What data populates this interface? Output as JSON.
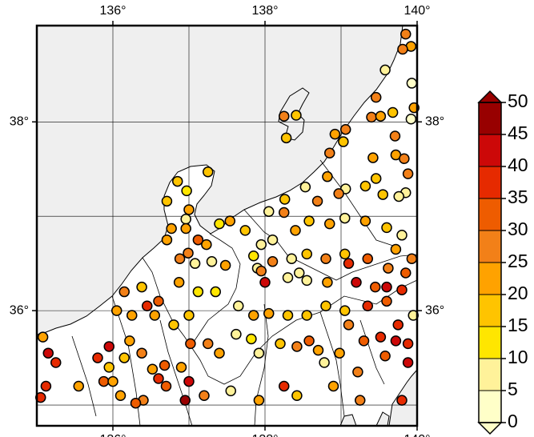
{
  "chart_data": {
    "type": "scatter",
    "xlim": [
      135,
      140
    ],
    "ylim": [
      34.78,
      39.02
    ],
    "xticks": [
      {
        "value": 136,
        "label": "136°"
      },
      {
        "value": 138,
        "label": "138°"
      },
      {
        "value": 140,
        "label": "140°"
      }
    ],
    "yticks": [
      {
        "value": 36,
        "label": "36°"
      },
      {
        "value": 38,
        "label": "38°"
      }
    ],
    "xgrid": [
      136,
      137,
      138,
      139
    ],
    "ygrid": [
      35,
      36,
      37,
      38
    ],
    "colorbar": {
      "ticks": [
        0,
        5,
        10,
        15,
        20,
        25,
        30,
        35,
        40,
        45,
        50
      ],
      "colors": [
        "#ffffc8",
        "#fff29a",
        "#ffe600",
        "#ffc400",
        "#ffa200",
        "#f28018",
        "#ee5c00",
        "#e62a00",
        "#cc0808",
        "#980000"
      ]
    },
    "x": [
      139.85,
      139.92,
      139.81,
      139.58,
      139.93,
      139.46,
      139.96,
      139.68,
      139.4,
      139.52,
      139.92,
      138.25,
      138.41,
      138.28,
      139.06,
      138.92,
      139.03,
      138.85,
      139.71,
      139.72,
      139.42,
      139.83,
      139.46,
      139.88,
      139.85,
      138.82,
      139.06,
      138.53,
      139.32,
      138.26,
      138.25,
      138.05,
      138.69,
      138.97,
      139.55,
      139.76,
      137.25,
      136.85,
      136.71,
      136.97,
      137.0,
      136.96,
      136.77,
      136.96,
      137.12,
      136.71,
      136.88,
      136.99,
      137.23,
      137.4,
      137.54,
      137.74,
      137.95,
      138.1,
      138.4,
      138.58,
      138.85,
      139.05,
      139.32,
      139.6,
      139.8,
      139.72,
      139.93,
      137.9,
      137.85,
      138.1,
      138.35,
      138.55,
      138.8,
      139.05,
      139.35,
      139.62,
      139.85,
      138.0,
      137.95,
      138.3,
      138.45,
      138.55,
      138.82,
      139.1,
      139.2,
      139.45,
      139.6,
      139.8,
      137.08,
      137.3,
      137.48,
      136.87,
      137.12,
      137.35,
      137.65,
      137.85,
      138.05,
      138.3,
      138.55,
      138.8,
      139.05,
      139.1,
      139.35,
      139.6,
      139.75,
      139.95,
      136.15,
      136.38,
      136.45,
      136.6,
      136.25,
      136.05,
      136.55,
      136.8,
      137.0,
      136.22,
      136.15,
      136.38,
      136.52,
      136.68,
      136.9,
      137.02,
      137.25,
      137.4,
      137.62,
      137.82,
      137.92,
      138.2,
      138.42,
      138.58,
      138.7,
      138.78,
      138.98,
      139.3,
      139.52,
      139.72,
      139.88,
      139.58,
      139.88,
      139.22,
      138.9,
      138.42,
      138.25,
      137.92,
      137.55,
      137.2,
      136.95,
      136.7,
      136.6,
      136.4,
      136.1,
      135.88,
      135.55,
      135.25,
      135.15,
      135.08,
      135.12,
      135.05,
      135.8,
      135.95,
      135.95,
      136.0,
      136.3,
      137.0,
      139.25,
      139.8
    ],
    "y": [
      38.93,
      38.8,
      38.77,
      38.55,
      38.41,
      38.26,
      38.15,
      38.1,
      38.05,
      38.06,
      38.03,
      38.06,
      38.07,
      37.83,
      37.92,
      37.87,
      37.79,
      37.67,
      37.85,
      37.65,
      37.62,
      37.61,
      37.4,
      37.45,
      37.25,
      37.42,
      37.29,
      37.31,
      37.32,
      37.18,
      37.04,
      37.05,
      37.16,
      37.24,
      37.23,
      37.21,
      37.47,
      37.37,
      37.16,
      37.27,
      37.07,
      36.97,
      36.87,
      36.87,
      36.75,
      36.75,
      36.55,
      36.61,
      36.7,
      36.92,
      36.95,
      36.85,
      36.7,
      36.75,
      36.85,
      36.95,
      36.92,
      36.98,
      36.95,
      36.88,
      36.8,
      36.65,
      36.55,
      36.45,
      36.58,
      36.52,
      36.55,
      36.6,
      36.55,
      36.6,
      36.55,
      36.45,
      36.4,
      36.3,
      36.42,
      36.35,
      36.4,
      36.32,
      36.3,
      36.5,
      36.3,
      36.25,
      36.25,
      36.22,
      36.5,
      36.52,
      36.48,
      36.3,
      36.2,
      36.2,
      36.05,
      35.95,
      35.97,
      35.95,
      35.95,
      36.05,
      36.0,
      35.85,
      36.05,
      36.1,
      35.85,
      35.95,
      36.2,
      36.25,
      36.05,
      36.1,
      35.95,
      36.0,
      35.95,
      35.85,
      35.95,
      35.68,
      35.5,
      35.55,
      35.38,
      35.42,
      35.4,
      35.65,
      35.65,
      35.55,
      35.75,
      35.7,
      35.55,
      35.65,
      35.62,
      35.68,
      35.58,
      35.45,
      35.55,
      35.68,
      35.72,
      35.68,
      35.65,
      35.52,
      35.45,
      35.35,
      35.2,
      35.1,
      35.2,
      35.05,
      35.15,
      35.1,
      35.05,
      35.2,
      35.28,
      35.05,
      35.1,
      35.25,
      35.2,
      35.45,
      35.55,
      35.72,
      35.2,
      35.08,
      35.5,
      35.62,
      35.4,
      35.25,
      35.02,
      35.25,
      35.05,
      35.05
    ],
    "values": [
      25,
      20,
      25,
      5,
      0,
      25,
      20,
      15,
      25,
      20,
      0,
      25,
      15,
      15,
      25,
      20,
      15,
      25,
      25,
      20,
      20,
      25,
      15,
      25,
      5,
      20,
      5,
      5,
      15,
      15,
      25,
      5,
      25,
      25,
      15,
      5,
      15,
      15,
      15,
      10,
      20,
      5,
      20,
      20,
      30,
      20,
      25,
      25,
      20,
      10,
      20,
      15,
      5,
      5,
      20,
      15,
      20,
      5,
      20,
      15,
      5,
      20,
      25,
      5,
      10,
      25,
      5,
      15,
      25,
      15,
      30,
      25,
      30,
      40,
      25,
      5,
      5,
      5,
      20,
      35,
      40,
      30,
      40,
      35,
      5,
      5,
      20,
      20,
      10,
      10,
      5,
      20,
      20,
      15,
      15,
      15,
      15,
      25,
      35,
      30,
      35,
      5,
      25,
      15,
      35,
      30,
      20,
      20,
      20,
      15,
      15,
      20,
      15,
      25,
      20,
      30,
      20,
      30,
      25,
      20,
      5,
      10,
      5,
      15,
      25,
      30,
      20,
      5,
      20,
      30,
      35,
      40,
      35,
      30,
      40,
      25,
      20,
      15,
      35,
      20,
      5,
      25,
      45,
      30,
      35,
      25,
      20,
      30,
      20,
      35,
      40,
      20,
      35,
      35,
      35,
      40,
      15,
      20,
      30,
      40,
      25,
      35
    ]
  }
}
